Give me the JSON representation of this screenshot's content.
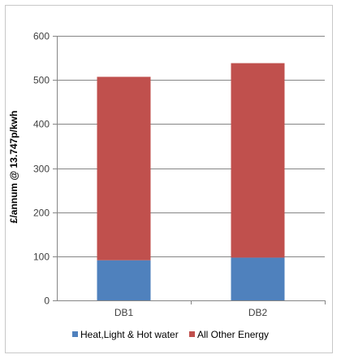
{
  "chart_data": {
    "type": "bar",
    "stacked": true,
    "title": "",
    "xlabel": "",
    "ylabel": "£/annum @ 13.747p/kwh",
    "categories": [
      "DB1",
      "DB2"
    ],
    "ylim": [
      0,
      600
    ],
    "yticks": [
      0,
      100,
      200,
      300,
      400,
      500,
      600
    ],
    "grid": true,
    "legend_position": "bottom",
    "series": [
      {
        "name": "Heat,Light & Hot water",
        "color": "#4f81bd",
        "values": [
          91,
          97
        ]
      },
      {
        "name": "All Other Energy",
        "color": "#c0504d",
        "values": [
          416,
          441
        ]
      }
    ]
  }
}
